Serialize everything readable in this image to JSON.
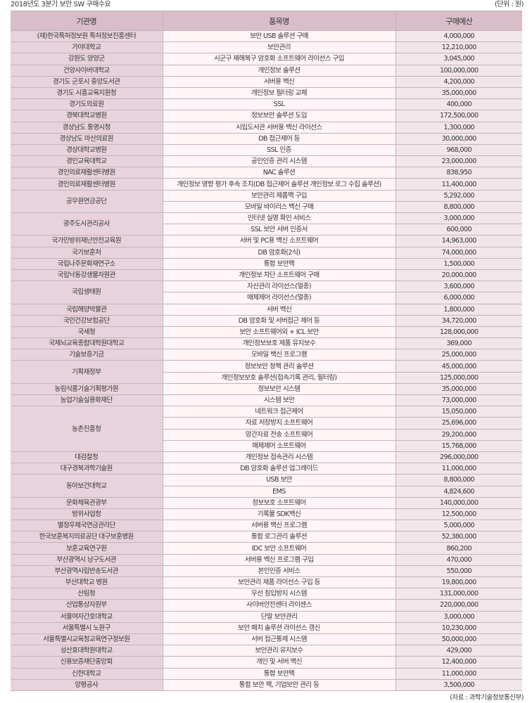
{
  "title": "2018년도 3분기 보안 SW 구매수요",
  "unit": "(단위 : 원)",
  "source": "(자료 : 과학기술정보통신부)",
  "colors": {
    "header_bg": "#d9bdc9",
    "org_bg": "#e8d3dc",
    "item_bg": "#fff5f7",
    "budget_bg": "#f2e6eb"
  },
  "headers": [
    "기관명",
    "품목명",
    "구매예산"
  ],
  "groups": [
    {
      "org": "(재)한국특허정보원 특허정보진흥센터",
      "items": [
        {
          "item": "보안 USB 솔루션 구매",
          "budget": "4,000,000"
        }
      ]
    },
    {
      "org": "가야대학교",
      "items": [
        {
          "item": "보안관리",
          "budget": "12,210,000"
        }
      ]
    },
    {
      "org": "강원도 양양군",
      "items": [
        {
          "item": "시군구 재해복구 암호화 소프트웨어 라이선스 구입",
          "budget": "3,045,000"
        }
      ]
    },
    {
      "org": "건양사이버대학교",
      "items": [
        {
          "item": "개인정보 솔루션",
          "budget": "100,000,000"
        }
      ]
    },
    {
      "org": "경기도 군포시 중앙도서관",
      "items": [
        {
          "item": "서버용 백신",
          "budget": "4,200,000"
        }
      ]
    },
    {
      "org": "경기도 시흥교육지원청",
      "items": [
        {
          "item": "개인정보 필터링 교체",
          "budget": "35,000,000"
        }
      ]
    },
    {
      "org": "경기도의료원",
      "items": [
        {
          "item": "SSL",
          "budget": "400,000"
        }
      ]
    },
    {
      "org": "경북대학교병원",
      "items": [
        {
          "item": "정보보안 솔루션 도입",
          "budget": "172,500,000"
        }
      ]
    },
    {
      "org": "경상남도 통영시청",
      "items": [
        {
          "item": "시립도서관 서버용 백신 라이선스",
          "budget": "1,300,000"
        }
      ]
    },
    {
      "org": "경상남도 마산의료원",
      "items": [
        {
          "item": "DB 접근제어 등",
          "budget": "30,000,000"
        }
      ]
    },
    {
      "org": "경상대학교병원",
      "items": [
        {
          "item": "SSL 인증",
          "budget": "968,000"
        }
      ]
    },
    {
      "org": "경인교육대학교",
      "items": [
        {
          "item": "공인인증 관리 시스템",
          "budget": "23,000,000"
        }
      ]
    },
    {
      "org": "경인의료재활센터병원",
      "items": [
        {
          "item": "NAC 솔루션",
          "budget": "838,950"
        }
      ]
    },
    {
      "org": "경인의료재활센터병원",
      "items": [
        {
          "item": "개인정보 영향 평가 후속 조치(DB 접근제어 솔루션 개인정보 로그 수집 솔루션)",
          "budget": "11,400,000"
        }
      ]
    },
    {
      "org": "공무원연금공단",
      "items": [
        {
          "item": "보안관리 제품팩 구입",
          "budget": "5,292,000"
        },
        {
          "item": "모바일 바이러스 백신 구매",
          "budget": "8,800,000"
        }
      ]
    },
    {
      "org": "광주도시관리공사",
      "items": [
        {
          "item": "인터넷 실명 확인 서비스",
          "budget": "3,000,000"
        },
        {
          "item": "SSL 보안 서버 인증서",
          "budget": "600,000"
        }
      ]
    },
    {
      "org": "국가민방위재난안전교육원",
      "items": [
        {
          "item": "서버 및 PC용 백신 소프트웨어",
          "budget": "14,963,000"
        }
      ]
    },
    {
      "org": "국가보훈처",
      "items": [
        {
          "item": "DB 암호화(2식)",
          "budget": "74,000,000"
        }
      ]
    },
    {
      "org": "국립나주문화재연구소",
      "items": [
        {
          "item": "통합 보안팩",
          "budget": "1,500,000"
        }
      ]
    },
    {
      "org": "국립낙동강생물자원관",
      "items": [
        {
          "item": "개인정보 차단 소프트웨어 구매",
          "budget": "20,000,000"
        }
      ]
    },
    {
      "org": "국립생태원",
      "items": [
        {
          "item": "자산관리 라이선스(멀종)",
          "budget": "3,600,000"
        },
        {
          "item": "매체제어 라이선스(멀종)",
          "budget": "6,000,000"
        }
      ]
    },
    {
      "org": "국립해양박물관",
      "items": [
        {
          "item": "서버 백신",
          "budget": "1,800,000"
        }
      ]
    },
    {
      "org": "국민건강보험공단",
      "items": [
        {
          "item": "DB 암호화 및 서버접근 제어 등",
          "budget": "34,720,000"
        }
      ]
    },
    {
      "org": "국세청",
      "items": [
        {
          "item": "보안 소프트웨어외 + ICL 보안",
          "budget": "128,000,000"
        }
      ]
    },
    {
      "org": "국제뇌교육종합대학원대학교",
      "items": [
        {
          "item": "개인정보보호 제품 유지보수",
          "budget": "369,000"
        }
      ]
    },
    {
      "org": "기술보증기금",
      "items": [
        {
          "item": "모바일 백신 프로그램",
          "budget": "25,000,000"
        }
      ]
    },
    {
      "org": "기획재정부",
      "items": [
        {
          "item": "정보보안 정책 관리 솔루션",
          "budget": "45,000,000"
        },
        {
          "item": "개인정보보호 솔루션(접속기록 관리, 필터링)",
          "budget": "125,000,000"
        }
      ]
    },
    {
      "org": "농림식품기술기획평가원",
      "items": [
        {
          "item": "정보보안 시스템",
          "budget": "35,000,000"
        }
      ]
    },
    {
      "org": "농업기술실용화재단",
      "items": [
        {
          "item": "시스템 보안",
          "budget": "73,000,000"
        }
      ]
    },
    {
      "org": "농촌진흥청",
      "items": [
        {
          "item": "네트워크 접근제어",
          "budget": "15,050,000"
        },
        {
          "item": "자료 저장방지 소프트웨어",
          "budget": "25,696,000"
        },
        {
          "item": "망간자료 전송 소프트웨어",
          "budget": "29,200,000"
        },
        {
          "item": "매체제어 소프트웨어",
          "budget": "15,768,000"
        }
      ]
    },
    {
      "org": "대검찰청",
      "items": [
        {
          "item": "개인정보 접속관리 시스템",
          "budget": "296,000,000"
        }
      ]
    },
    {
      "org": "대구경북과학기술원",
      "items": [
        {
          "item": "DB 암호화 솔루션 업그레이드",
          "budget": "11,000,000"
        }
      ]
    },
    {
      "org": "동아보건대학교",
      "items": [
        {
          "item": "USB 보안",
          "budget": "8,800,000"
        },
        {
          "item": "EMS",
          "budget": "4,824,600"
        }
      ]
    },
    {
      "org": "문화체육관광부",
      "items": [
        {
          "item": "정보보호 소프트웨어",
          "budget": "140,000,000"
        }
      ]
    },
    {
      "org": "방위사업청",
      "items": [
        {
          "item": "기록물 SDK백신",
          "budget": "12,500,000"
        }
      ]
    },
    {
      "org": "별정우체국연금관리단",
      "items": [
        {
          "item": "서버용 백신 프로그램",
          "budget": "5,000,000"
        }
      ]
    },
    {
      "org": "한국보훈복지의료공단 대구보훈병원",
      "items": [
        {
          "item": "통합 로그관리 솔루션",
          "budget": "52,380,000"
        }
      ]
    },
    {
      "org": "보훈교육연구원",
      "items": [
        {
          "item": "IDC 보안 소프트웨어",
          "budget": "860,200"
        }
      ]
    },
    {
      "org": "부산광역시 남구도서관",
      "items": [
        {
          "item": "서버용 백신 프로그램 구입",
          "budget": "470,000"
        }
      ]
    },
    {
      "org": "부산광역시립반송도서관",
      "items": [
        {
          "item": "본인인증 서비스",
          "budget": "550,000"
        }
      ]
    },
    {
      "org": "부산대학교 병원",
      "items": [
        {
          "item": "보안관리 제품 라이선스 구입 등",
          "budget": "19,800,000"
        }
      ]
    },
    {
      "org": "산림청",
      "items": [
        {
          "item": "무선 침입방지 시스템",
          "budget": "131,000,000"
        }
      ]
    },
    {
      "org": "산업통상자원부",
      "items": [
        {
          "item": "사이버안전센터 라이센스",
          "budget": "220,000,000"
        }
      ]
    },
    {
      "org": "서울여자간호대학교",
      "items": [
        {
          "item": "단말 보안관리",
          "budget": "3,000,000"
        }
      ]
    },
    {
      "org": "서울특별시 노원구",
      "items": [
        {
          "item": "보안 패치 솔루션 라이선스 갱신",
          "budget": "10,230,000"
        }
      ]
    },
    {
      "org": "서울특별시교육청교육연구정보원",
      "items": [
        {
          "item": "서버 접근통제 시스템",
          "budget": "50,000,000"
        }
      ]
    },
    {
      "org": "성산효대학원대학교",
      "items": [
        {
          "item": "보안관리 유지보수",
          "budget": "429,000"
        }
      ]
    },
    {
      "org": "신용보증재단중앙회",
      "items": [
        {
          "item": "개인 및 서버 백신",
          "budget": "12,400,000"
        }
      ]
    },
    {
      "org": "신한대학교",
      "items": [
        {
          "item": "통합 보안팩",
          "budget": "11,000,000"
        }
      ]
    },
    {
      "org": "양평공사",
      "items": [
        {
          "item": "통합 보안 팩, 기업보안 관리 등",
          "budget": "3,500,000"
        }
      ]
    }
  ]
}
